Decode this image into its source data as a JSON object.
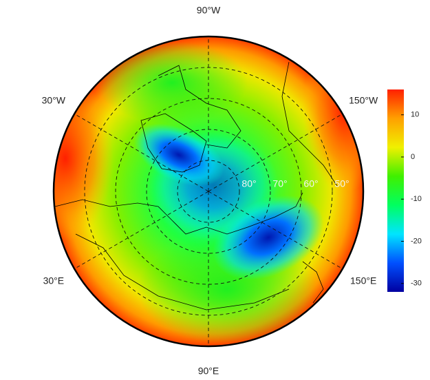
{
  "map": {
    "lat_range": [
      40,
      90
    ],
    "longitude_labels": [
      {
        "value": -90,
        "label": "90°W"
      },
      {
        "value": -30,
        "label": "30°W"
      },
      {
        "value": -150,
        "label": "150°W"
      },
      {
        "value": 30,
        "label": "30°E"
      },
      {
        "value": 150,
        "label": "150°E"
      },
      {
        "value": 90,
        "label": "90°E"
      }
    ],
    "latitude_labels": [
      {
        "value": 80,
        "label": "80°"
      },
      {
        "value": 70,
        "label": "70°"
      },
      {
        "value": 60,
        "label": "60°"
      },
      {
        "value": 50,
        "label": "50°"
      }
    ],
    "colorbar": {
      "lim": [
        -32,
        16
      ],
      "ticks": [
        10,
        0,
        -10,
        -20,
        -30
      ],
      "colors": [
        "#0000a0",
        "#0050ff",
        "#00e5ff",
        "#00ff60",
        "#40f000",
        "#f0f000",
        "#ffa000",
        "#ff2000"
      ]
    }
  }
}
